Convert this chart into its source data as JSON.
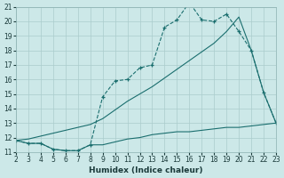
{
  "background_color": "#cce8e8",
  "grid_color": "#aacccc",
  "line_color": "#1a6e6e",
  "x_min": 2,
  "x_max": 23,
  "y_min": 11,
  "y_max": 21,
  "xlabel": "Humidex (Indice chaleur)",
  "zigzag_x": [
    2,
    3,
    4,
    5,
    6,
    7,
    8,
    9,
    10,
    11,
    12,
    13,
    14,
    15,
    16,
    17,
    18,
    19,
    20,
    21,
    22,
    23
  ],
  "zigzag_y": [
    11.8,
    11.6,
    11.6,
    11.2,
    11.1,
    11.1,
    11.5,
    14.8,
    15.9,
    16.0,
    16.8,
    17.0,
    19.6,
    20.1,
    21.3,
    20.1,
    20.0,
    20.5,
    19.3,
    18.0,
    15.1,
    13.0
  ],
  "diag_x": [
    2,
    3,
    4,
    5,
    6,
    7,
    8,
    9,
    10,
    11,
    12,
    13,
    14,
    15,
    16,
    17,
    18,
    19,
    20,
    21,
    22,
    23
  ],
  "diag_y": [
    11.8,
    11.9,
    12.1,
    12.3,
    12.5,
    12.7,
    12.9,
    13.3,
    13.9,
    14.5,
    15.0,
    15.5,
    16.1,
    16.7,
    17.3,
    17.9,
    18.5,
    19.3,
    20.3,
    18.0,
    15.1,
    13.0
  ],
  "bottom_x": [
    2,
    3,
    4,
    5,
    6,
    7,
    8,
    9,
    10,
    11,
    12,
    13,
    14,
    15,
    16,
    17,
    18,
    19,
    20,
    21,
    22,
    23
  ],
  "bottom_y": [
    11.8,
    11.6,
    11.6,
    11.2,
    11.1,
    11.1,
    11.5,
    11.5,
    11.7,
    11.9,
    12.0,
    12.2,
    12.3,
    12.4,
    12.4,
    12.5,
    12.6,
    12.7,
    12.7,
    12.8,
    12.9,
    13.0
  ]
}
